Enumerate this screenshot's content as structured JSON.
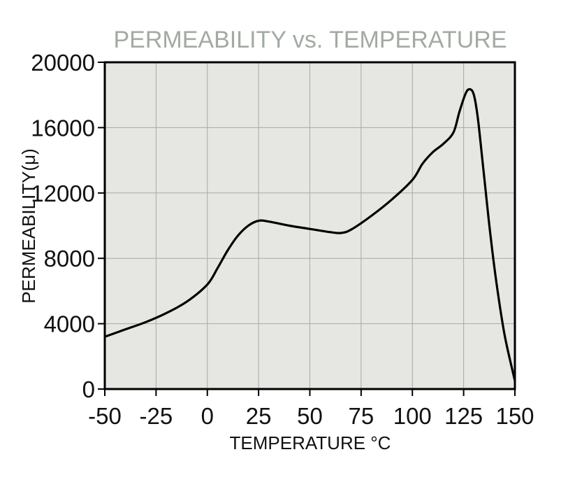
{
  "chart_data": {
    "type": "line",
    "title": "PERMEABILITY vs. TEMPERATURE",
    "xlabel": "TEMPERATURE °C",
    "ylabel": "PERMEABILITY(μ)",
    "xlim": [
      -50,
      150
    ],
    "ylim": [
      0,
      20000
    ],
    "xticks": [
      -50,
      -25,
      0,
      25,
      50,
      75,
      100,
      125,
      150
    ],
    "yticks": [
      0,
      4000,
      8000,
      12000,
      16000,
      20000
    ],
    "grid": true,
    "colors": {
      "plot_bg": "#e6e6e2",
      "grid": "#a8a8a8",
      "line": "#000000",
      "title": "#a3aaa3"
    },
    "series": [
      {
        "x": [
          -50,
          -40,
          -30,
          -20,
          -10,
          0,
          5,
          10,
          15,
          20,
          25,
          30,
          40,
          50,
          60,
          65,
          70,
          80,
          90,
          100,
          105,
          110,
          115,
          120,
          123,
          126,
          128,
          130,
          132,
          135,
          138,
          141,
          145,
          150
        ],
        "values": [
          3200,
          3650,
          4100,
          4650,
          5350,
          6400,
          7400,
          8500,
          9400,
          10000,
          10300,
          10250,
          10000,
          9800,
          9600,
          9550,
          9750,
          10600,
          11600,
          12800,
          13800,
          14500,
          15000,
          15700,
          17000,
          18100,
          18350,
          18000,
          16500,
          13000,
          9500,
          6500,
          3300,
          500
        ]
      }
    ]
  }
}
